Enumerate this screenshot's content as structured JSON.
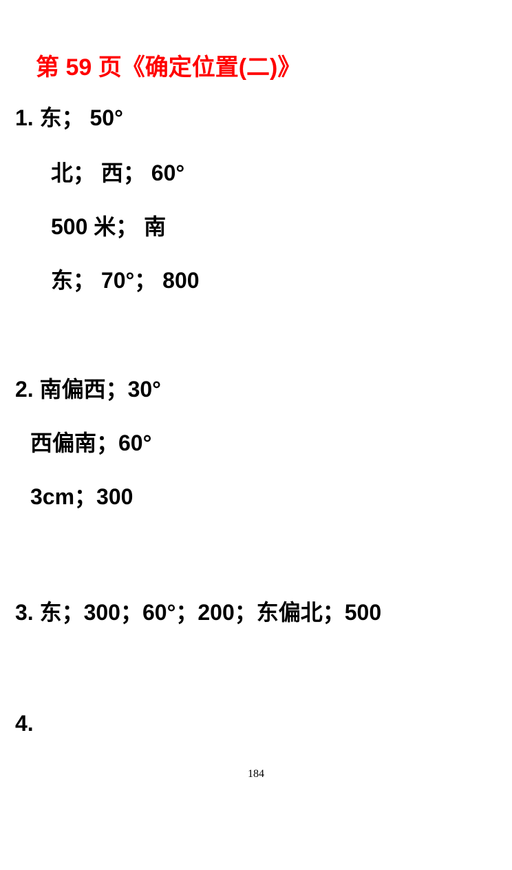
{
  "title": "第 59 页《确定位置(二)》",
  "item1": {
    "line1": "1.  东；  50°",
    "line2": "北；  西；  60°",
    "line3": "500 米；   南",
    "line4": "东；  70°；  800"
  },
  "item2": {
    "line1": "2. 南偏西；30°",
    "line2": "西偏南；60°",
    "line3": "3cm；300"
  },
  "item3": "3. 东；300；60°；200；东偏北；500",
  "item4": "4.",
  "pageNumber": "184",
  "colors": {
    "title": "#ff0000",
    "text": "#000000",
    "background": "#ffffff"
  },
  "fontsize": {
    "title": 34,
    "body": 32,
    "pageNum": 16
  }
}
